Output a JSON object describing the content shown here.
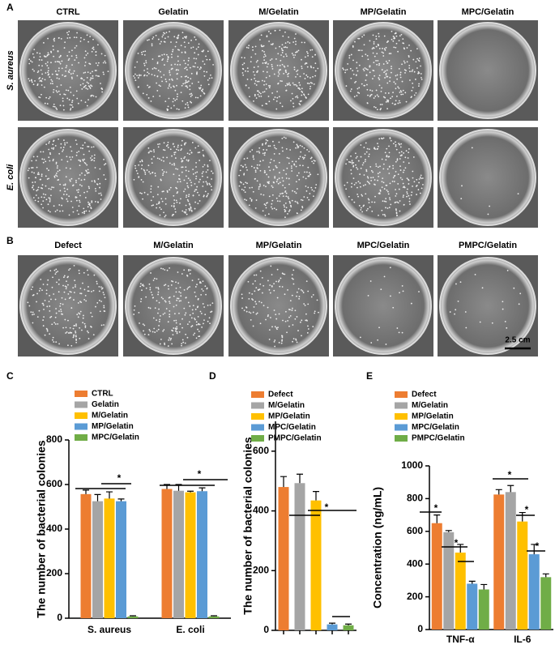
{
  "panel_a": {
    "label": "A",
    "columns": [
      "CTRL",
      "Gelatin",
      "M/Gelatin",
      "MP/Gelatin",
      "MPC/Gelatin"
    ],
    "rows": [
      "S. aureus",
      "E. coli"
    ]
  },
  "panel_b": {
    "label": "B",
    "columns": [
      "Defect",
      "M/Gelatin",
      "MP/Gelatin",
      "MPC/Gelatin",
      "PMPC/Gelatin"
    ],
    "scale_bar": "2.5 cm"
  },
  "chart_data": [
    {
      "type": "bar",
      "panel": "C",
      "ylabel": "The number of bacterial colonies",
      "categories": [
        "S. aureus",
        "E. coli"
      ],
      "series": [
        {
          "name": "CTRL",
          "color": "#ED7D31",
          "values": [
            557,
            580
          ],
          "errors": [
            18,
            20
          ]
        },
        {
          "name": "Gelatin",
          "color": "#A5A5A5",
          "values": [
            525,
            572
          ],
          "errors": [
            30,
            28
          ]
        },
        {
          "name": "M/Gelatin",
          "color": "#FFC000",
          "values": [
            537,
            565
          ],
          "errors": [
            30,
            5
          ]
        },
        {
          "name": "MP/Gelatin",
          "color": "#5B9BD5",
          "values": [
            525,
            570
          ],
          "errors": [
            10,
            15
          ]
        },
        {
          "name": "MPC/Gelatin",
          "color": "#70AD47",
          "values": [
            8,
            8
          ],
          "errors": [
            3,
            3
          ]
        }
      ],
      "ylim": [
        0,
        800
      ],
      "yticks": [
        0,
        200,
        400,
        600,
        800
      ],
      "annotations": [
        "*",
        "*"
      ]
    },
    {
      "type": "bar",
      "panel": "D",
      "ylabel": "The number of bacterial colonies",
      "categories": [
        "Defect",
        "M/Gelatin",
        "MP/Gelatin",
        "MPC/Gelatin",
        "PMPC/Gelatin"
      ],
      "colors": [
        "#ED7D31",
        "#A5A5A5",
        "#FFC000",
        "#5B9BD5",
        "#70AD47"
      ],
      "values": [
        480,
        493,
        435,
        20,
        17
      ],
      "errors": [
        35,
        30,
        30,
        4,
        4
      ],
      "ylim": [
        0,
        700
      ],
      "yticks": [
        0,
        200,
        400,
        600
      ],
      "annotations": [
        "*"
      ]
    },
    {
      "type": "bar",
      "panel": "E",
      "ylabel": "Concentration (ng/mL)",
      "categories": [
        "TNF-α",
        "IL-6"
      ],
      "series": [
        {
          "name": "Defect",
          "color": "#ED7D31",
          "values": [
            650,
            825
          ],
          "errors": [
            50,
            30
          ]
        },
        {
          "name": "M/Gelatin",
          "color": "#A5A5A5",
          "values": [
            595,
            840
          ],
          "errors": [
            10,
            40
          ]
        },
        {
          "name": "MP/Gelatin",
          "color": "#FFC000",
          "values": [
            470,
            660
          ],
          "errors": [
            50,
            55
          ]
        },
        {
          "name": "MPC/Gelatin",
          "color": "#5B9BD5",
          "values": [
            280,
            460
          ],
          "errors": [
            15,
            60
          ]
        },
        {
          "name": "PMPC/Gelatin",
          "color": "#70AD47",
          "values": [
            245,
            320
          ],
          "errors": [
            30,
            20
          ]
        }
      ],
      "ylim": [
        0,
        1000
      ],
      "yticks": [
        0,
        200,
        400,
        600,
        800,
        1000
      ],
      "annotations": [
        "*",
        "*",
        "*",
        "*",
        "*"
      ]
    }
  ]
}
